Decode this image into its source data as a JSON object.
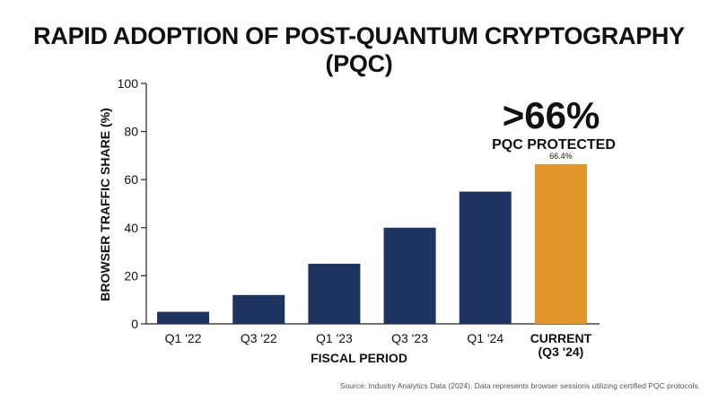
{
  "chart_data": {
    "type": "bar",
    "title": "RAPID ADOPTION OF POST-QUANTUM CRYPTOGRAPHY (PQC)",
    "xlabel": "FISCAL PERIOD",
    "ylabel": "BROWSER TRAFFIC SHARE (%)",
    "ylim": [
      0,
      100
    ],
    "yticks": [
      0,
      20,
      40,
      60,
      80,
      100
    ],
    "grid": false,
    "categories": [
      {
        "line1": "Q1 '22",
        "line2": ""
      },
      {
        "line1": "Q3 '22",
        "line2": ""
      },
      {
        "line1": "Q1 '23",
        "line2": ""
      },
      {
        "line1": "Q3 '23",
        "line2": ""
      },
      {
        "line1": "Q1 '24",
        "line2": ""
      },
      {
        "line1": "CURRENT",
        "line2": "(Q3 '24)"
      }
    ],
    "values": [
      5,
      12,
      25,
      40,
      55,
      66.4
    ],
    "highlight_index": 5,
    "data_labels": [
      "",
      "",
      "",
      "",
      "",
      "66.4%"
    ],
    "annotation": {
      "big": ">66%",
      "small": "PQC PROTECTED"
    },
    "colors": {
      "bar": "#1f3461",
      "highlight": "#e0952a",
      "axis": "#222222",
      "text": "#111111"
    }
  },
  "source": "Source: Industry Analytics Data (2024). Data represents browser sessions utilizing certified PQC protocols."
}
